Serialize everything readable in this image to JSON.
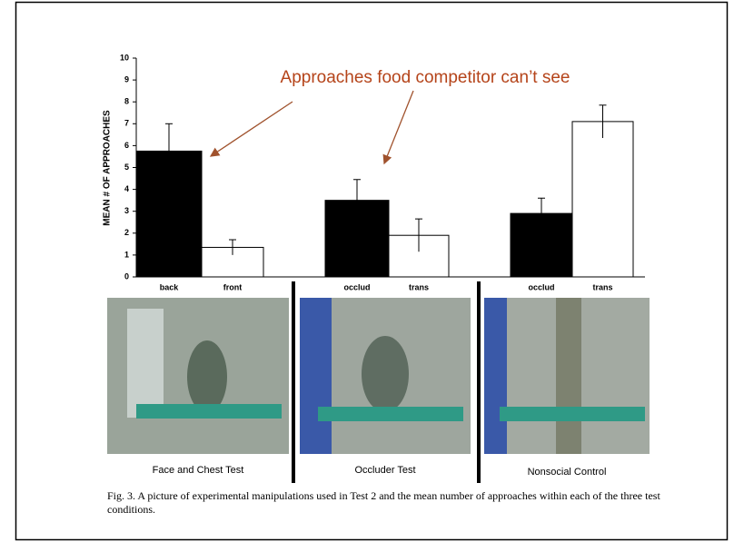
{
  "chart_data": {
    "type": "bar",
    "y_label": "MEAN # OF APPROACHES",
    "annotation": "Approaches food competitor can’t see",
    "categories": [
      "back",
      "front",
      "occlud",
      "trans",
      "occlud",
      "trans"
    ],
    "values": [
      5.75,
      1.35,
      3.5,
      1.9,
      2.9,
      7.1
    ],
    "errors": [
      1.25,
      0.35,
      0.95,
      0.75,
      0.7,
      0.75
    ],
    "colors": [
      "#000000",
      "#ffffff",
      "#000000",
      "#ffffff",
      "#000000",
      "#ffffff"
    ],
    "ylim": [
      0,
      10
    ],
    "yticks": [
      0,
      1,
      2,
      3,
      4,
      5,
      6,
      7,
      8,
      9,
      10
    ]
  },
  "photos": [
    "Face and Chest Test",
    "Occluder Test",
    "Nonsocial Control"
  ],
  "caption": "Fig. 3.  A picture of experimental manipulations used in Test 2 and the mean number of approaches within each of the three test conditions."
}
